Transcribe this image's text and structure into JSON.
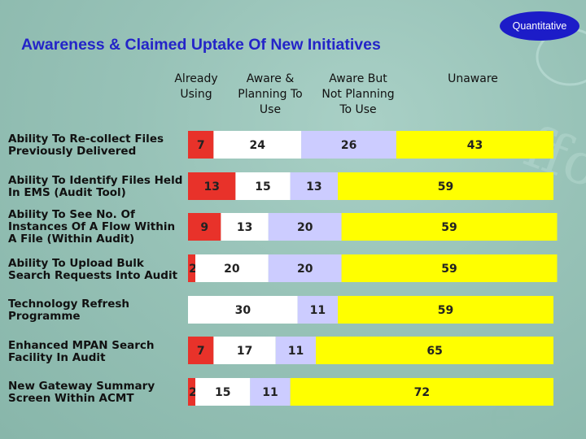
{
  "badge": "Quantitative",
  "title": "Awareness & Claimed Uptake Of New Initiatives",
  "chart_data": {
    "type": "bar",
    "stacked": true,
    "orientation": "horizontal",
    "title": "Awareness & Claimed Uptake Of New Initiatives",
    "series_labels": [
      "Already\nUsing",
      "Aware &\nPlanning To\nUse",
      "Aware But\nNot Planning\nTo Use",
      "Unaware"
    ],
    "colors": [
      "#e8322a",
      "#ffffff",
      "#ccccff",
      "#ffff00"
    ],
    "categories": [
      "Ability To Re-collect Files Previously Delivered",
      "Ability To Identify Files Held In EMS (Audit Tool)",
      "Ability To See No. Of Instances Of A Flow Within A File (Within Audit)",
      "Ability To Upload Bulk Search Requests Into Audit",
      "Technology Refresh Programme",
      "Enhanced MPAN Search Facility In Audit",
      "New Gateway Summary Screen Within ACMT"
    ],
    "series": [
      {
        "values": [
          7,
          13,
          9,
          2,
          0,
          7,
          2
        ]
      },
      {
        "values": [
          24,
          15,
          13,
          20,
          30,
          17,
          15
        ]
      },
      {
        "values": [
          26,
          13,
          20,
          20,
          11,
          11,
          11
        ]
      },
      {
        "values": [
          43,
          59,
          59,
          59,
          59,
          65,
          72
        ]
      }
    ],
    "xlim": [
      0,
      100
    ]
  }
}
